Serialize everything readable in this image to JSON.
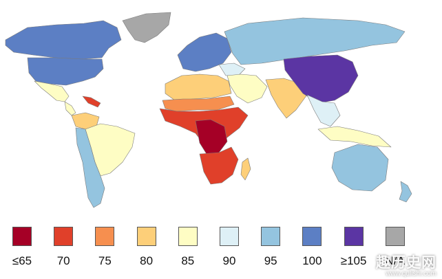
{
  "map": {
    "regions": [
      {
        "name": "greenland",
        "bin": "N/A"
      },
      {
        "name": "canada-alaska",
        "bin": "100"
      },
      {
        "name": "usa",
        "bin": "100"
      },
      {
        "name": "mexico",
        "bin": "85"
      },
      {
        "name": "central-america",
        "bin": "85"
      },
      {
        "name": "caribbean",
        "bin": "70"
      },
      {
        "name": "colombia-venezuela",
        "bin": "80"
      },
      {
        "name": "brazil",
        "bin": "85"
      },
      {
        "name": "andes-southern-cone",
        "bin": "95"
      },
      {
        "name": "western-europe",
        "bin": "100"
      },
      {
        "name": "russia-north-asia",
        "bin": "95"
      },
      {
        "name": "turkey-caucasus",
        "bin": "90"
      },
      {
        "name": "middle-east",
        "bin": "85"
      },
      {
        "name": "north-africa",
        "bin": "80"
      },
      {
        "name": "sahel",
        "bin": "75"
      },
      {
        "name": "west-central-africa",
        "bin": "70"
      },
      {
        "name": "central-africa-core",
        "bin": "≤65"
      },
      {
        "name": "southern-africa",
        "bin": "70"
      },
      {
        "name": "madagascar",
        "bin": "80"
      },
      {
        "name": "south-asia",
        "bin": "80"
      },
      {
        "name": "china-korea-japan",
        "bin": "≥105"
      },
      {
        "name": "southeast-asia",
        "bin": "90"
      },
      {
        "name": "indonesia",
        "bin": "85"
      },
      {
        "name": "australia",
        "bin": "95"
      },
      {
        "name": "new-zealand",
        "bin": "95"
      }
    ]
  },
  "legend": {
    "items": [
      {
        "label": "≤65",
        "color": "#a50026"
      },
      {
        "label": "70",
        "color": "#e0402a"
      },
      {
        "label": "75",
        "color": "#f68f4f"
      },
      {
        "label": "80",
        "color": "#fdcf79"
      },
      {
        "label": "85",
        "color": "#fefdc4"
      },
      {
        "label": "90",
        "color": "#def0f6"
      },
      {
        "label": "95",
        "color": "#94c4df"
      },
      {
        "label": "100",
        "color": "#5c7fc4"
      },
      {
        "label": "≥105",
        "color": "#5b35a3"
      },
      {
        "label": "N/A",
        "color": "#a7a7a7"
      }
    ]
  },
  "watermark": {
    "main": "趣历史网",
    "sub": "www.qulishi.com"
  }
}
